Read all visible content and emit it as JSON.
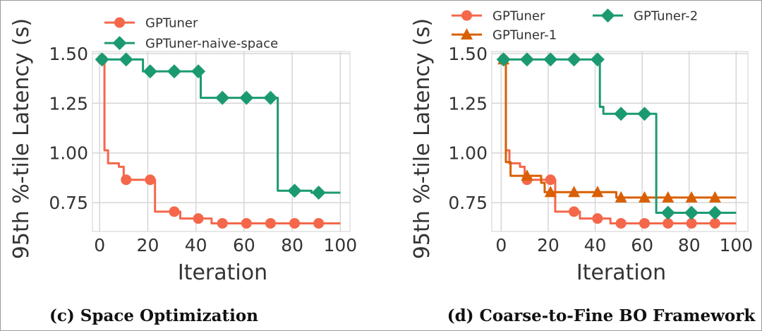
{
  "chart_data": [
    {
      "type": "line",
      "step": "post",
      "caption": "(c) Space Optimization",
      "xlabel": "Iteration",
      "ylabel": "95th %-tile Latency (s)",
      "xlim": [
        -3,
        104
      ],
      "ylim": [
        0.605,
        1.51
      ],
      "xticks": [
        "0",
        "20",
        "40",
        "60",
        "80",
        "100"
      ],
      "yticks": [
        "0.75",
        "1.00",
        "1.25",
        "1.50"
      ],
      "grid": true,
      "legend": "top",
      "series": [
        {
          "name": "GPTuner",
          "color": "#f4674b",
          "marker": "circle",
          "points": [
            [
              1,
              1.47
            ],
            [
              2,
              1.013
            ],
            [
              3.5,
              0.948
            ],
            [
              8,
              0.93
            ],
            [
              10,
              0.865
            ],
            [
              23,
              0.705
            ],
            [
              33.5,
              0.67
            ],
            [
              46.5,
              0.646
            ],
            [
              100,
              0.646
            ]
          ]
        },
        {
          "name": "GPTuner-naive-space",
          "color": "#1b9a71",
          "marker": "diamond",
          "points": [
            [
              1,
              1.47
            ],
            [
              18,
              1.41
            ],
            [
              42,
              1.277
            ],
            [
              74,
              0.81
            ],
            [
              88,
              0.8
            ],
            [
              100,
              0.8
            ]
          ]
        }
      ]
    },
    {
      "type": "line",
      "step": "post",
      "caption": "(d) Coarse-to-Fine BO Framework",
      "xlabel": "Iteration",
      "ylabel": "95th %-tile Latency (s)",
      "xlim": [
        -4,
        105
      ],
      "ylim": [
        0.605,
        1.51
      ],
      "xticks": [
        "0",
        "20",
        "40",
        "60",
        "80",
        "100"
      ],
      "yticks": [
        "0.75",
        "1.00",
        "1.25",
        "1.50"
      ],
      "grid": true,
      "legend": "top",
      "series": [
        {
          "name": "GPTuner",
          "color": "#f4674b",
          "marker": "circle",
          "points": [
            [
              1,
              1.47
            ],
            [
              2,
              1.013
            ],
            [
              3.5,
              0.948
            ],
            [
              8,
              0.93
            ],
            [
              10,
              0.865
            ],
            [
              23,
              0.705
            ],
            [
              33.5,
              0.67
            ],
            [
              46.5,
              0.646
            ],
            [
              100,
              0.646
            ]
          ]
        },
        {
          "name": "GPTuner-1",
          "color": "#d95f02",
          "marker": "triangle",
          "points": [
            [
              1,
              1.47
            ],
            [
              2,
              0.954
            ],
            [
              4,
              0.885
            ],
            [
              17,
              0.85
            ],
            [
              18.5,
              0.803
            ],
            [
              49,
              0.776
            ],
            [
              100,
              0.776
            ]
          ]
        },
        {
          "name": "GPTuner-2",
          "color": "#1b9a71",
          "marker": "diamond",
          "points": [
            [
              1,
              1.47
            ],
            [
              42,
              1.232
            ],
            [
              43.5,
              1.197
            ],
            [
              66,
              0.699
            ],
            [
              100,
              0.699
            ]
          ]
        }
      ]
    }
  ]
}
